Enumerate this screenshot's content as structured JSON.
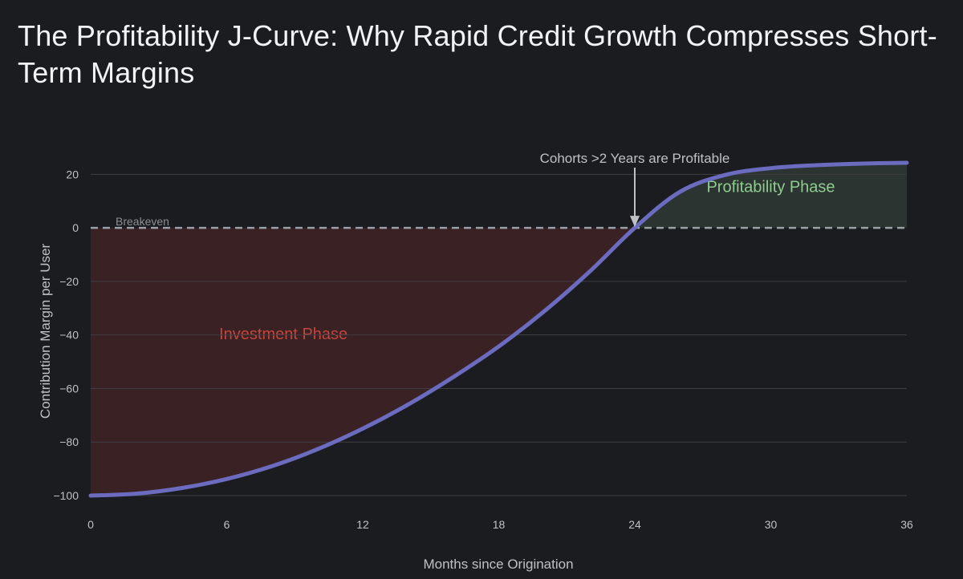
{
  "chart_data": {
    "type": "area",
    "title": "The Profitability J-Curve: Why Rapid Credit Growth Compresses Short-Term Margins",
    "xlabel": "Months since Origination",
    "ylabel": "Contribution Margin per User",
    "xlim": [
      0,
      36
    ],
    "ylim": [
      -100,
      24
    ],
    "xticks": [
      0,
      6,
      12,
      18,
      24,
      30,
      36
    ],
    "yticks": [
      -100,
      -80,
      -60,
      -40,
      -20,
      0,
      20
    ],
    "grid": true,
    "series": [
      {
        "name": "Contribution Margin per User",
        "color": "#6b6bbf",
        "x": [
          0,
          2,
          4,
          6,
          8,
          10,
          12,
          14,
          16,
          18,
          20,
          22,
          24,
          26,
          28,
          30,
          32,
          34,
          36
        ],
        "y": [
          -100,
          -99.3,
          -97.2,
          -93.8,
          -89,
          -82.7,
          -75,
          -66,
          -55.7,
          -44.3,
          -31.2,
          -16.4,
          0,
          13.5,
          19.8,
          22.3,
          23.4,
          24,
          24.3
        ]
      }
    ],
    "reference_line": {
      "y": 0,
      "label": "Breakeven",
      "color": "#9aa0a6"
    },
    "regions": [
      {
        "label": "Investment Phase",
        "x_range": [
          0,
          24
        ],
        "fill": "#3a2224",
        "text_color": "#c5453d",
        "label_x": 8.5,
        "label_y": -40
      },
      {
        "label": "Profitability Phase",
        "x_range": [
          24,
          36
        ],
        "fill": "#2b3430",
        "text_color": "#8fcc8f",
        "label_x": 30,
        "label_y": 15
      }
    ],
    "annotation": {
      "text": "Cohorts >2 Years are Profitable",
      "x": 24,
      "y": 0,
      "text_y": 27
    }
  }
}
